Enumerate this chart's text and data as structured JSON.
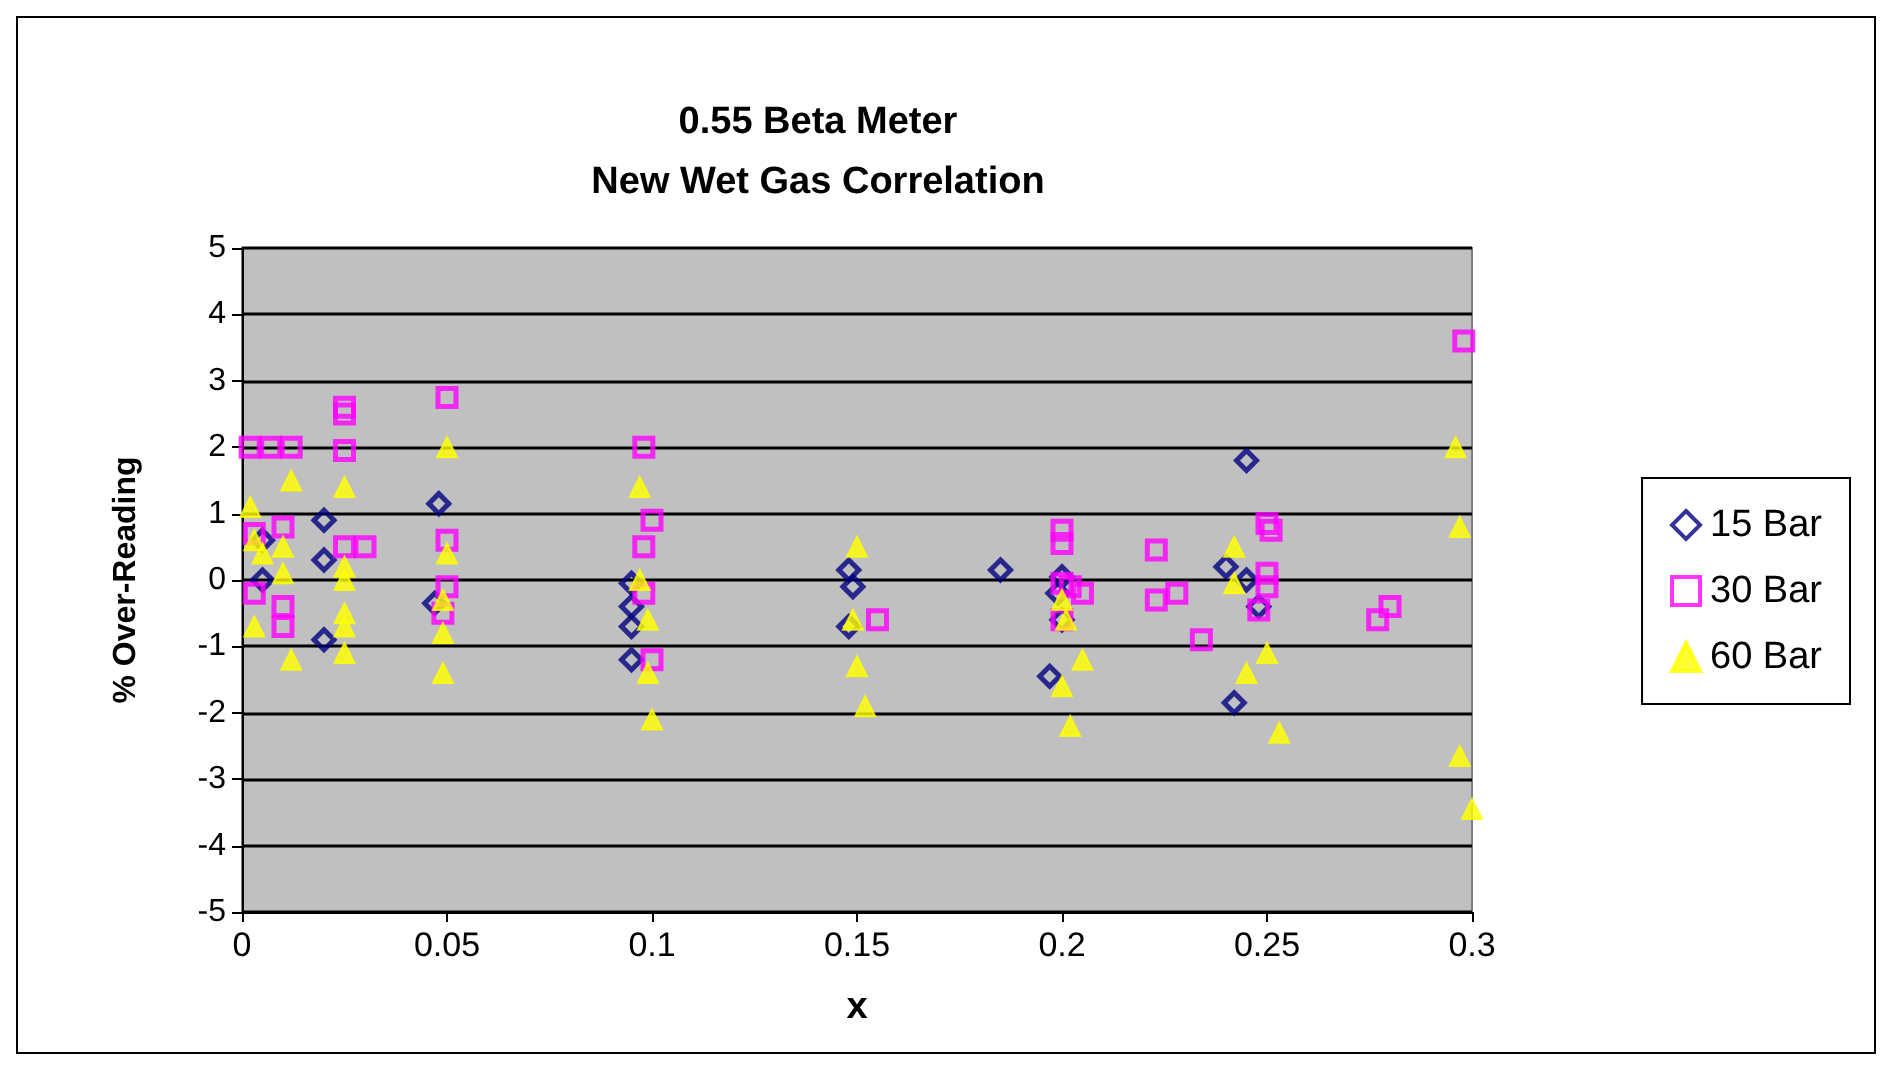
{
  "chart_data": {
    "type": "scatter",
    "title": "0.55 Beta Meter\nNew Wet Gas Correlation",
    "xlabel": "x",
    "ylabel": "% Over-Reading",
    "xlim": [
      0,
      0.3
    ],
    "xticks": [
      0,
      0.05,
      0.1,
      0.15,
      0.2,
      0.25,
      0.3
    ],
    "ylim": [
      -5,
      5
    ],
    "yticks": [
      -5,
      -4,
      -3,
      -2,
      -1,
      0,
      1,
      2,
      3,
      4,
      5
    ],
    "grid": "y",
    "legend": "right",
    "series": [
      {
        "name": "15 Bar",
        "color": "#000080",
        "marker": "diamond",
        "x": [
          0.005,
          0.005,
          0.02,
          0.02,
          0.02,
          0.048,
          0.047,
          0.095,
          0.095,
          0.095,
          0.095,
          0.148,
          0.149,
          0.148,
          0.185,
          0.2,
          0.199,
          0.2,
          0.197,
          0.245,
          0.24,
          0.245,
          0.248,
          0.242
        ],
        "values": [
          0.6,
          0,
          0.9,
          0.3,
          -0.9,
          1.15,
          -0.35,
          -0.05,
          -0.4,
          -0.7,
          -1.2,
          0.15,
          -0.1,
          -0.7,
          0.15,
          0.05,
          -0.2,
          -0.6,
          -1.45,
          1.8,
          0.2,
          0,
          -0.4,
          -1.85
        ]
      },
      {
        "name": "30 Bar",
        "color": "#ff00ff",
        "marker": "square",
        "x": [
          0.002,
          0.007,
          0.012,
          0.003,
          0.01,
          0.003,
          0.01,
          0.01,
          0.025,
          0.025,
          0.025,
          0.025,
          0.03,
          0.05,
          0.05,
          0.05,
          0.049,
          0.098,
          0.1,
          0.098,
          0.098,
          0.1,
          0.155,
          0.2,
          0.2,
          0.2,
          0.202,
          0.205,
          0.2,
          0.223,
          0.223,
          0.228,
          0.234,
          0.25,
          0.251,
          0.25,
          0.25,
          0.248,
          0.277,
          0.28,
          0.298
        ],
        "values": [
          2,
          2,
          2,
          0.7,
          0.8,
          -0.2,
          -0.4,
          -0.7,
          2.6,
          2.5,
          1.95,
          0.5,
          0.5,
          2.75,
          0.6,
          -0.1,
          -0.5,
          2,
          0.9,
          0.5,
          -0.2,
          -1.2,
          -0.6,
          0.75,
          0.55,
          -0.05,
          -0.1,
          -0.2,
          -0.6,
          0.45,
          -0.3,
          -0.2,
          -0.9,
          0.85,
          0.75,
          0.1,
          -0.1,
          -0.45,
          -0.6,
          -0.4,
          3.6
        ]
      },
      {
        "name": "60 Bar",
        "color": "#ffff00",
        "marker": "triangle",
        "x": [
          0.002,
          0.003,
          0.005,
          0.01,
          0.01,
          0.012,
          0.003,
          0.012,
          0.025,
          0.025,
          0.025,
          0.025,
          0.025,
          0.025,
          0.05,
          0.05,
          0.049,
          0.049,
          0.049,
          0.097,
          0.097,
          0.099,
          0.099,
          0.1,
          0.15,
          0.149,
          0.15,
          0.152,
          0.2,
          0.201,
          0.2,
          0.202,
          0.205,
          0.242,
          0.242,
          0.245,
          0.25,
          0.253,
          0.296,
          0.297,
          0.297,
          0.3
        ],
        "values": [
          1.1,
          0.6,
          0.4,
          0.5,
          0.1,
          1.5,
          -0.7,
          -1.2,
          1.4,
          0.2,
          0,
          -0.5,
          -0.7,
          -1.1,
          2,
          0.4,
          -0.3,
          -0.8,
          -1.4,
          1.4,
          0,
          -0.6,
          -1.4,
          -2.1,
          0.5,
          -0.6,
          -1.3,
          -1.9,
          -0.3,
          -0.6,
          -1.6,
          -2.2,
          -1.2,
          0.5,
          -0.05,
          -1.4,
          -1.1,
          -2.3,
          2,
          0.8,
          -2.65,
          -3.45
        ]
      }
    ]
  }
}
